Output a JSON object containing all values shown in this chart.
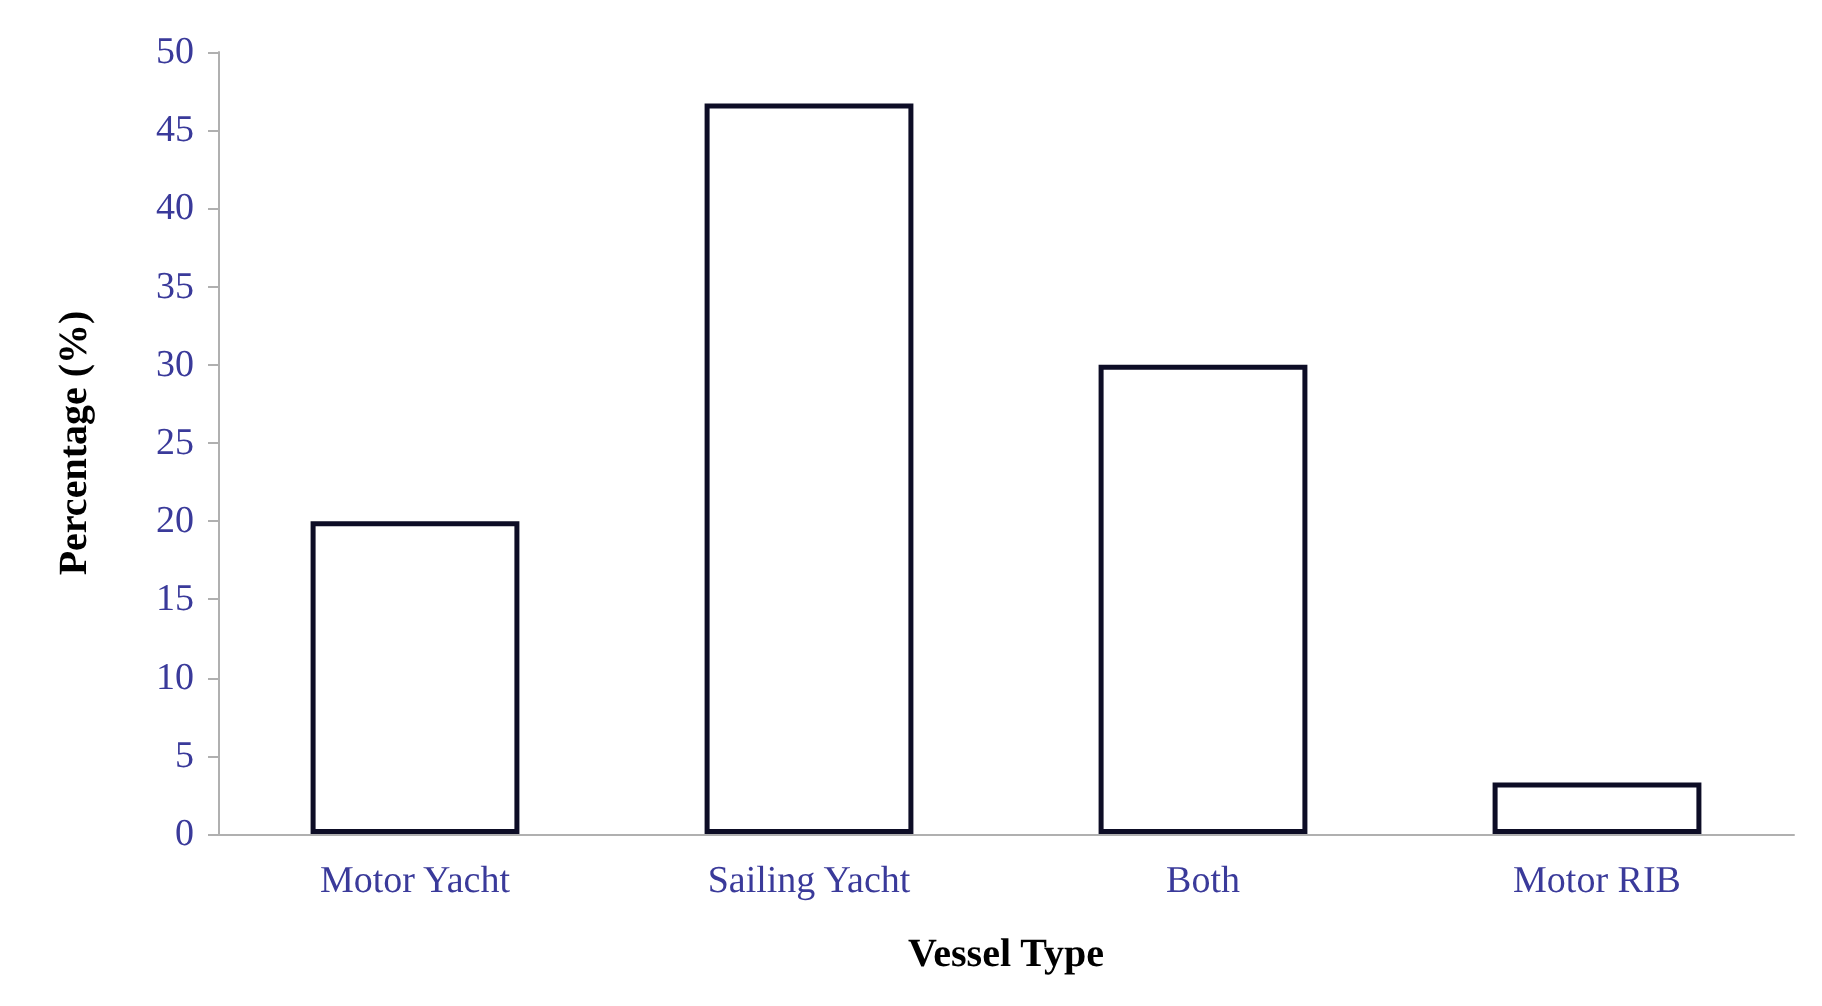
{
  "chart_data": {
    "type": "bar",
    "xlabel": "Vessel Type",
    "ylabel": "Percentage (%)",
    "categories": [
      "Motor Yacht",
      "Sailing Yacht",
      "Both",
      "Motor RIB"
    ],
    "values": [
      20,
      46.7,
      30,
      3.3
    ],
    "color": "#ffffff",
    "ylim": [
      0,
      50
    ],
    "yticks": [
      0,
      5,
      10,
      15,
      20,
      25,
      30,
      35,
      40,
      45,
      50
    ],
    "grid": false
  }
}
